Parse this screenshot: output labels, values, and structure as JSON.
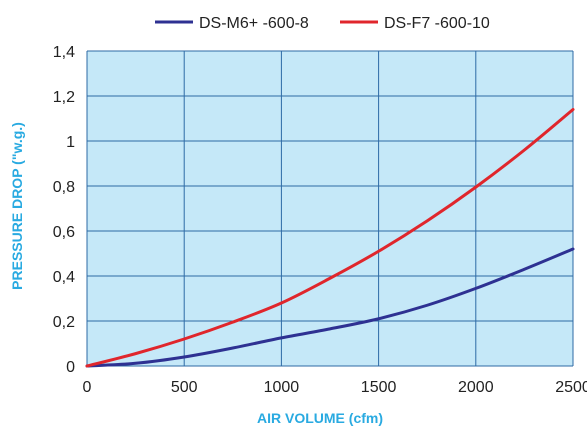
{
  "chart_data": {
    "type": "line",
    "xlabel": "AIR VOLUME (cfm)",
    "ylabel": "PRESSURE  DROP (\"w.g.)",
    "xlim": [
      0,
      2500
    ],
    "ylim": [
      0,
      1.4
    ],
    "x_ticks": [
      0,
      500,
      1000,
      1500,
      2000,
      2500
    ],
    "x_tick_labels": [
      "0",
      "500",
      "1000",
      "1500",
      "2000",
      "2500"
    ],
    "y_ticks": [
      0,
      0.2,
      0.4,
      0.6,
      0.8,
      1.0,
      1.2,
      1.4
    ],
    "y_tick_labels": [
      "0",
      "0,2",
      "0,4",
      "0,6",
      "0,8",
      "1",
      "1,2",
      "1,4"
    ],
    "grid": true,
    "legend_position": "top",
    "series": [
      {
        "name": "DS-M6+ -600-8",
        "color": "#2e3192",
        "x": [
          0,
          250,
          500,
          750,
          1000,
          1250,
          1500,
          1750,
          2000,
          2250,
          2500
        ],
        "y": [
          0,
          0.012,
          0.04,
          0.08,
          0.125,
          0.165,
          0.21,
          0.27,
          0.345,
          0.43,
          0.52
        ]
      },
      {
        "name": "DS-F7 -600-10",
        "color": "#e0262c",
        "x": [
          0,
          250,
          500,
          750,
          1000,
          1250,
          1500,
          1750,
          2000,
          2250,
          2500
        ],
        "y": [
          0,
          0.055,
          0.12,
          0.195,
          0.28,
          0.39,
          0.51,
          0.645,
          0.795,
          0.96,
          1.14
        ]
      }
    ],
    "colors": {
      "plot_background": "#c5e8f8",
      "grid": "#2d6aa5",
      "axis_title": "#29aae1"
    }
  }
}
